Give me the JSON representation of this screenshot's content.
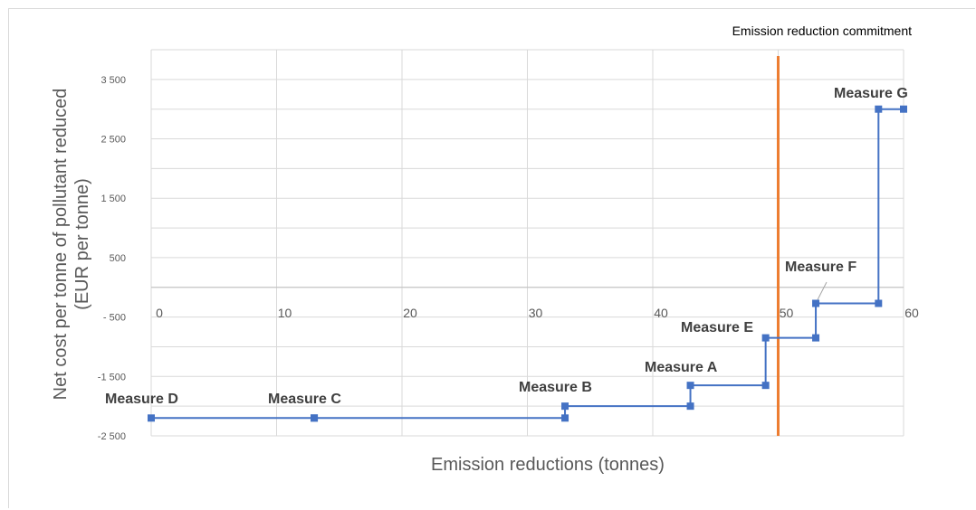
{
  "chart_data": {
    "type": "line",
    "title": "",
    "xlabel": "Emission reductions (tonnes)",
    "ylabel_lines": [
      "Net cost per tonne of pollutant reduced",
      "(EUR per tonne)"
    ],
    "xlim": [
      0,
      60
    ],
    "ylim": [
      -2500,
      4000
    ],
    "x_ticks": [
      "0",
      "10",
      "20",
      "30",
      "40",
      "50",
      "60"
    ],
    "x_tick_values": [
      0,
      10,
      20,
      30,
      40,
      50,
      60
    ],
    "y_ticks": [
      "3 500",
      "2 500",
      "1 500",
      "500",
      "- 500",
      "-1 500",
      "-2 500"
    ],
    "y_tick_values": [
      3500,
      2500,
      1500,
      500,
      -500,
      -1500,
      -2500
    ],
    "grid": true,
    "series": [
      {
        "color": "#4472C4",
        "steps": [
          {
            "label": "Measure D",
            "x_start": 0,
            "x_end": 13,
            "y": -2200
          },
          {
            "label": "Measure C",
            "x_start": 13,
            "x_end": 33,
            "y": -2200
          },
          {
            "label": "Measure B",
            "x_start": 33,
            "x_end": 43,
            "y": -2000
          },
          {
            "label": "Measure A",
            "x_start": 43,
            "x_end": 49,
            "y": -1650
          },
          {
            "label": "Measure E",
            "x_start": 49,
            "x_end": 53,
            "y": -850
          },
          {
            "label": "Measure F",
            "x_start": 53,
            "x_end": 58,
            "y": -270
          },
          {
            "label": "Measure G",
            "x_start": 58,
            "x_end": 60,
            "y": 3000
          }
        ]
      }
    ],
    "annotation": {
      "text": "Emission reduction commitment",
      "x": 50,
      "color": "#ED7D31"
    }
  }
}
